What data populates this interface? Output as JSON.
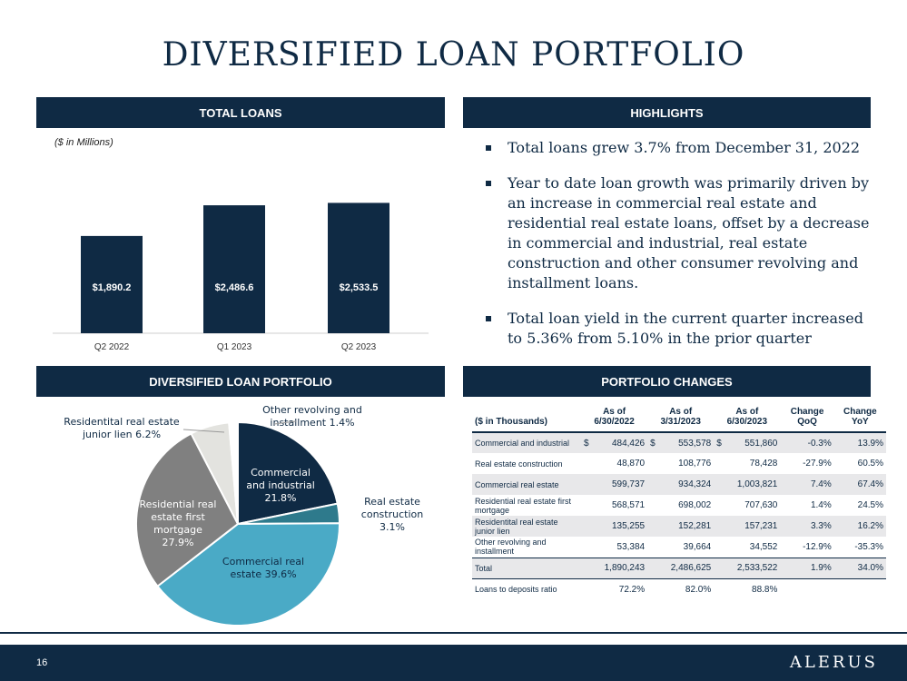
{
  "title": "DIVERSIFIED LOAN PORTFOLIO",
  "sections": {
    "total_loans": "TOTAL LOANS",
    "highlights": "HIGHLIGHTS",
    "diversified": "DIVERSIFIED LOAN PORTFOLIO",
    "portfolio_changes": "PORTFOLIO CHANGES"
  },
  "units_note": "($ in Millions)",
  "highlights": [
    "Total loans grew 3.7% from December 31, 2022",
    "Year to date loan growth was primarily driven by an increase in commercial real estate and residential real estate loans, offset by a decrease in commercial and industrial, real estate construction and other consumer revolving and installment loans.",
    "Total loan yield in the current quarter increased to 5.36% from 5.10% in the prior quarter"
  ],
  "chart_data": [
    {
      "type": "bar",
      "categories": [
        "Q2 2022",
        "Q1 2023",
        "Q2 2023"
      ],
      "values": [
        1890.2,
        2486.6,
        2533.5
      ],
      "data_labels": [
        "$1,890.2",
        "$2,486.6",
        "$2,533.5"
      ],
      "ylim": [
        0,
        3000
      ],
      "color": "#0f2a44",
      "grid": false
    },
    {
      "type": "pie",
      "slices": [
        {
          "label_lines": [
            "Commercial",
            "and industrial",
            "21.8%"
          ],
          "value": 21.8,
          "color": "#0f2a44",
          "label_color": "#ffffff"
        },
        {
          "label_lines": [
            "Real estate",
            "construction",
            "3.1%"
          ],
          "value": 3.1,
          "color": "#2e7a8c",
          "label_color": "#0f2a44"
        },
        {
          "label_lines": [
            "Commercial real",
            "estate 39.6%"
          ],
          "value": 39.6,
          "color": "#4aaac6",
          "label_color": "#0f2a44"
        },
        {
          "label_lines": [
            "Residential real",
            "estate first",
            "mortgage",
            "27.9%"
          ],
          "value": 27.9,
          "color": "#808080",
          "label_color": "#ffffff"
        },
        {
          "label_lines": [
            "Residentital real estate",
            "junior lien 6.2%"
          ],
          "value": 6.2,
          "color": "#e3e3df",
          "label_color": "#0f2a44"
        },
        {
          "label_lines": [
            "Other revolving and",
            "installment 1.4%"
          ],
          "value": 1.4,
          "color": "#ffffff",
          "label_color": "#0f2a44"
        }
      ]
    }
  ],
  "portfolio_table": {
    "headers": [
      "($ in Thousands)",
      "As of 6/30/2022",
      "As of 3/31/2023",
      "As of 6/30/2023",
      "Change QoQ",
      "Change YoY"
    ],
    "rows": [
      {
        "label": "Commercial and industrial",
        "cells": [
          "$",
          "484,426",
          "$",
          "553,578",
          "$",
          "551,860",
          "-0.3%",
          "13.9%"
        ]
      },
      {
        "label": "Real estate construction",
        "cells": [
          "",
          "48,870",
          "",
          "108,776",
          "",
          "78,428",
          "-27.9%",
          "60.5%"
        ]
      },
      {
        "label": "Commercial real estate",
        "cells": [
          "",
          "599,737",
          "",
          "934,324",
          "",
          "1,003,821",
          "7.4%",
          "67.4%"
        ]
      },
      {
        "label": "Residential real estate first mortgage",
        "cells": [
          "",
          "568,571",
          "",
          "698,002",
          "",
          "707,630",
          "1.4%",
          "24.5%"
        ]
      },
      {
        "label": "Residentital real estate junior lien",
        "cells": [
          "",
          "135,255",
          "",
          "152,281",
          "",
          "157,231",
          "3.3%",
          "16.2%"
        ]
      },
      {
        "label": "Other revolving and installment",
        "cells": [
          "",
          "53,384",
          "",
          "39,664",
          "",
          "34,552",
          "-12.9%",
          "-35.3%"
        ]
      }
    ],
    "total": {
      "label": "Total",
      "cells": [
        "",
        "1,890,243",
        "",
        "2,486,625",
        "",
        "2,533,522",
        "1.9%",
        "34.0%"
      ]
    },
    "ratio": {
      "label": "Loans to deposits ratio",
      "cells": [
        "",
        "72.2%",
        "",
        "82.0%",
        "",
        "88.8%",
        "",
        ""
      ]
    }
  },
  "footer": {
    "page_number": "16",
    "brand": "ALERUS"
  }
}
